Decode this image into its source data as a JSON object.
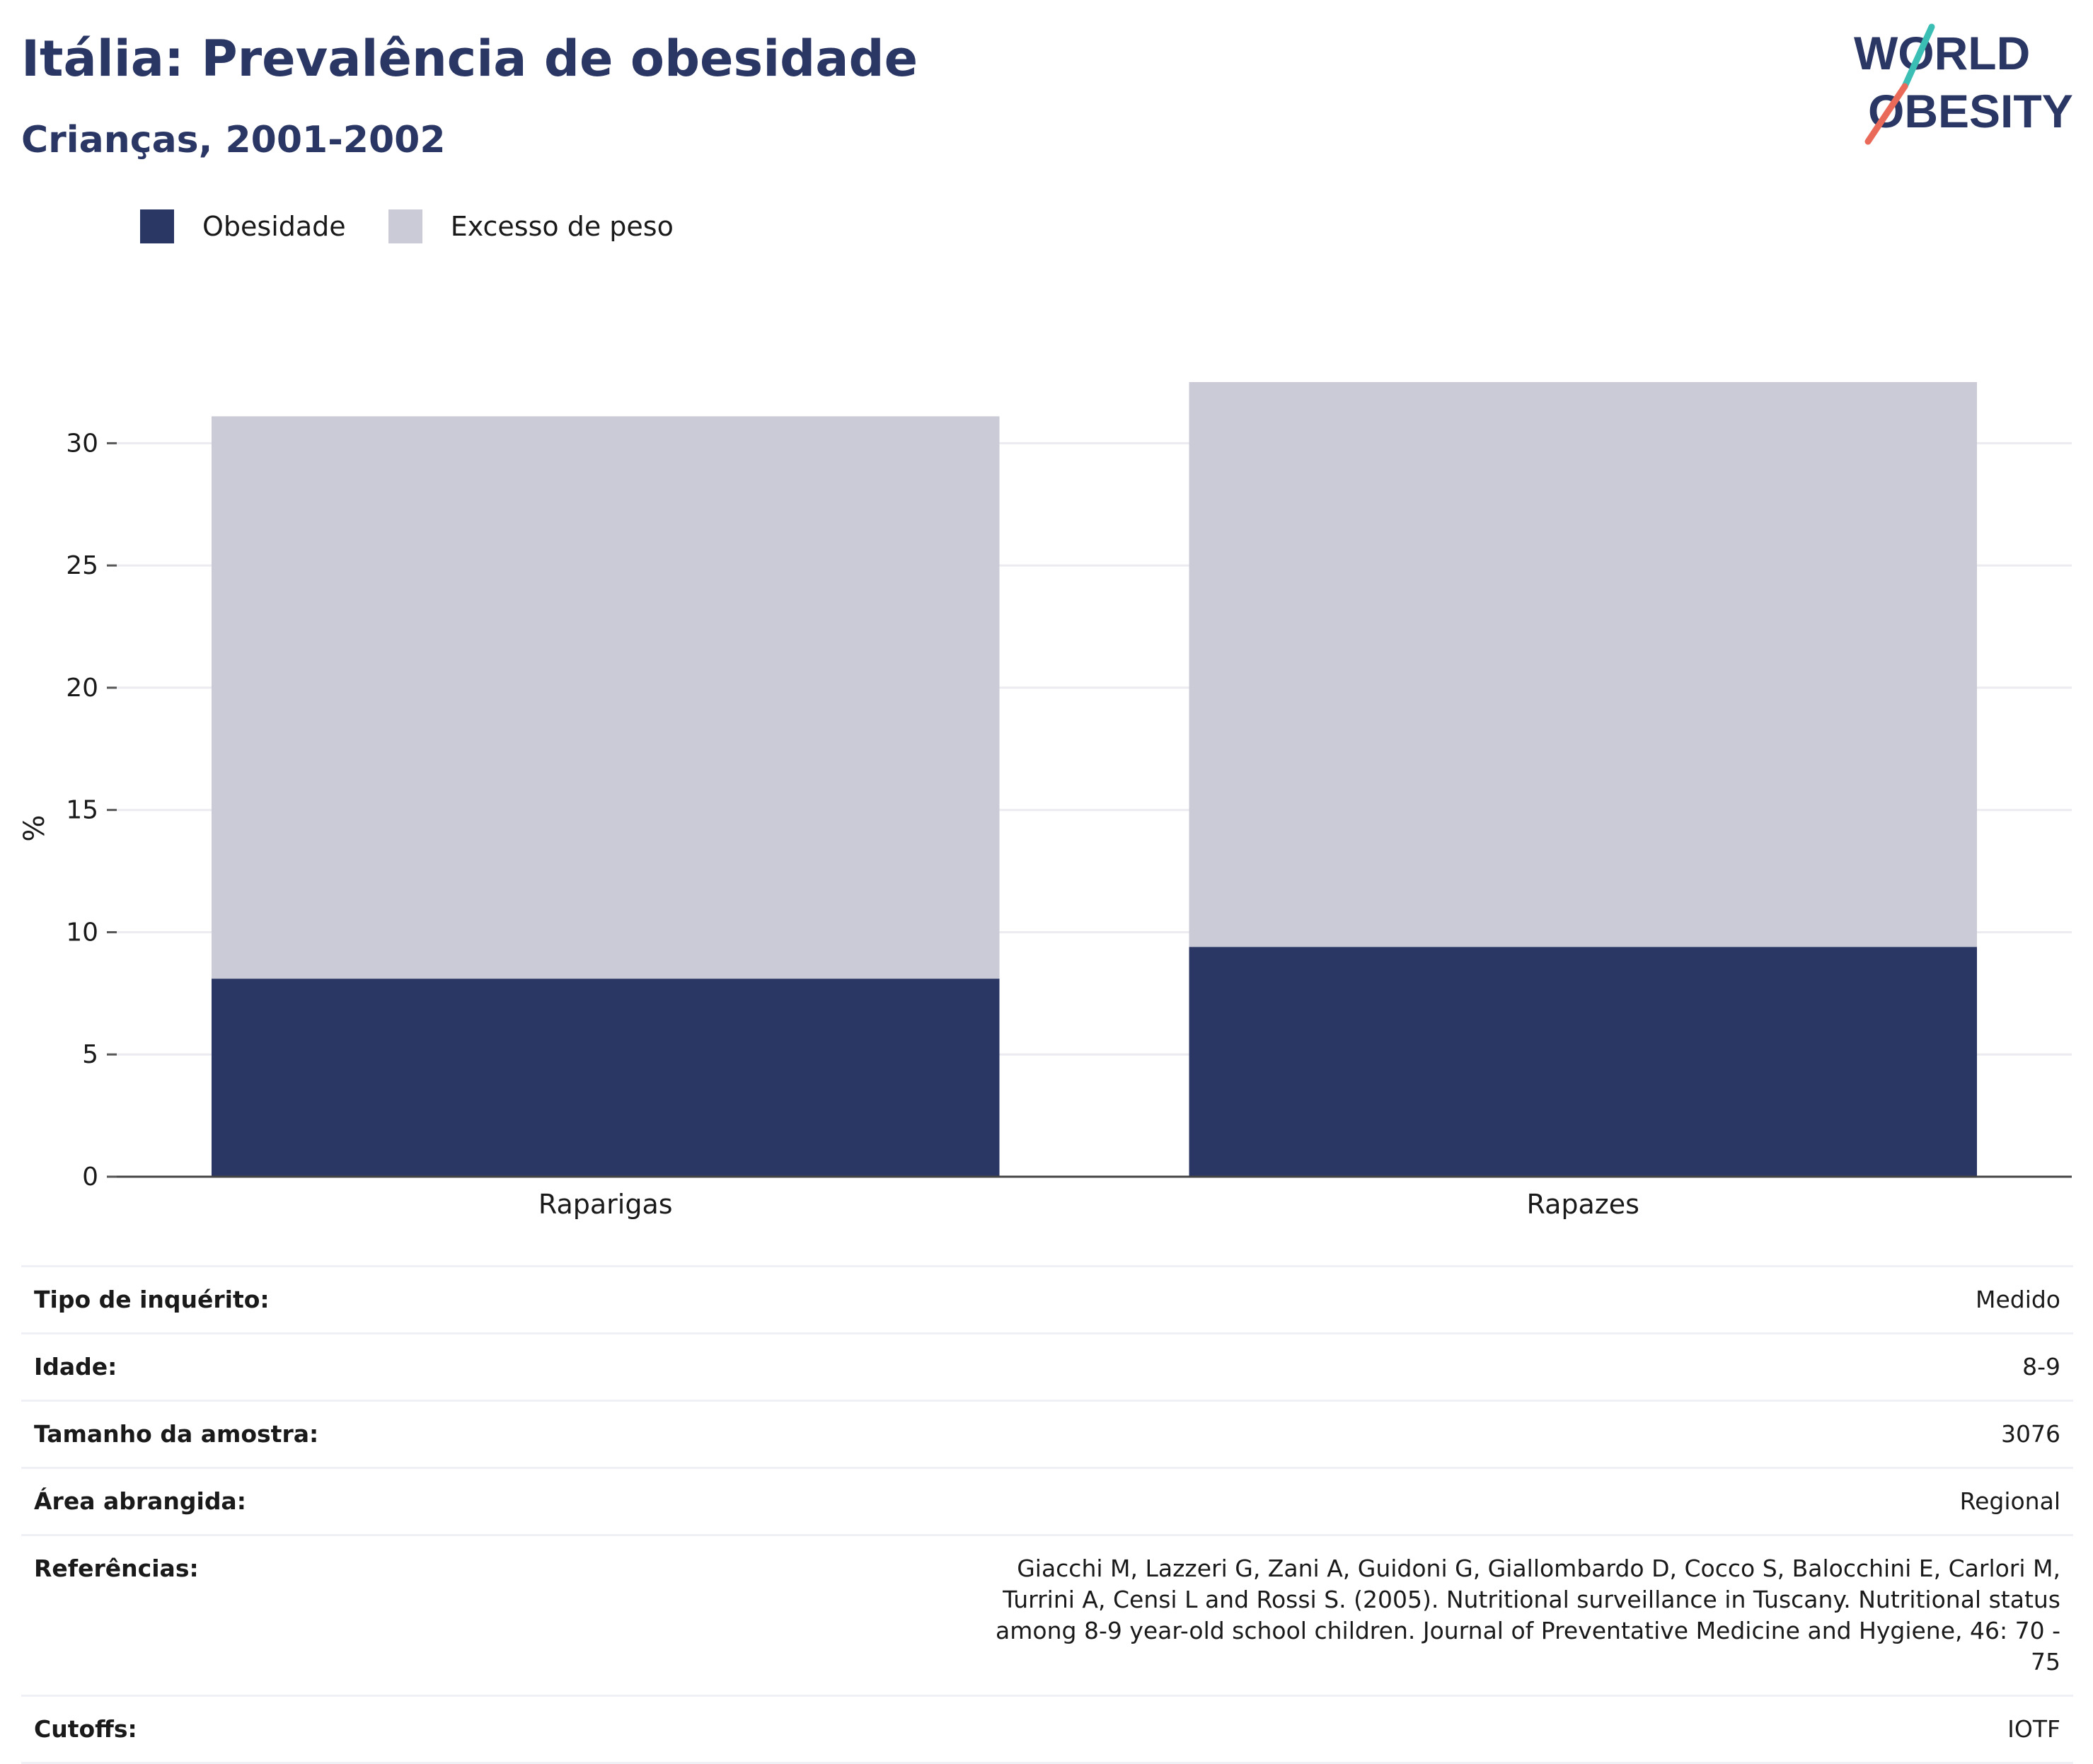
{
  "header": {
    "title": "Itália: Prevalência de obesidade",
    "subtitle": "Crianças, 2001-2002"
  },
  "logo": {
    "line1": "WORLD",
    "line2": "OBESITY",
    "colors": {
      "text": "#2a3663",
      "slash_top": "#3bbfb5",
      "slash_bottom": "#ea6a5a"
    }
  },
  "legend": [
    {
      "label": "Obesidade",
      "color": "#2a3663"
    },
    {
      "label": "Excesso de peso",
      "color": "#cacbd7"
    }
  ],
  "chart_data": {
    "type": "bar",
    "stacked": true,
    "categories": [
      "Raparigas",
      "Rapazes"
    ],
    "series": [
      {
        "name": "Obesidade",
        "values": [
          8.1,
          9.4
        ],
        "color": "#2a3663"
      },
      {
        "name": "Excesso de peso",
        "values": [
          23.0,
          23.1
        ],
        "color": "#cacbd7"
      }
    ],
    "ylabel": "%",
    "ylim": [
      0,
      32.5
    ],
    "yticks": [
      0,
      5,
      10,
      15,
      20,
      25,
      30
    ],
    "grid": true,
    "legend_position": "top-left"
  },
  "info": [
    {
      "label": "Tipo de inquérito:",
      "value": "Medido"
    },
    {
      "label": "Idade:",
      "value": "8-9"
    },
    {
      "label": "Tamanho da amostra:",
      "value": "3076"
    },
    {
      "label": "Área abrangida:",
      "value": "Regional"
    },
    {
      "label": "Referências:",
      "value": "Giacchi M, Lazzeri G, Zani A, Guidoni G, Giallombardo D, Cocco S, Balocchini E, Carlori M, Turrini A, Censi L and Rossi S. (2005). Nutritional surveillance in Tuscany. Nutritional status among 8-9 year-old school children. Journal of Preventative Medicine and Hygiene, 46: 70 - 75"
    },
    {
      "label": "Cutoffs:",
      "value": "IOTF"
    }
  ]
}
